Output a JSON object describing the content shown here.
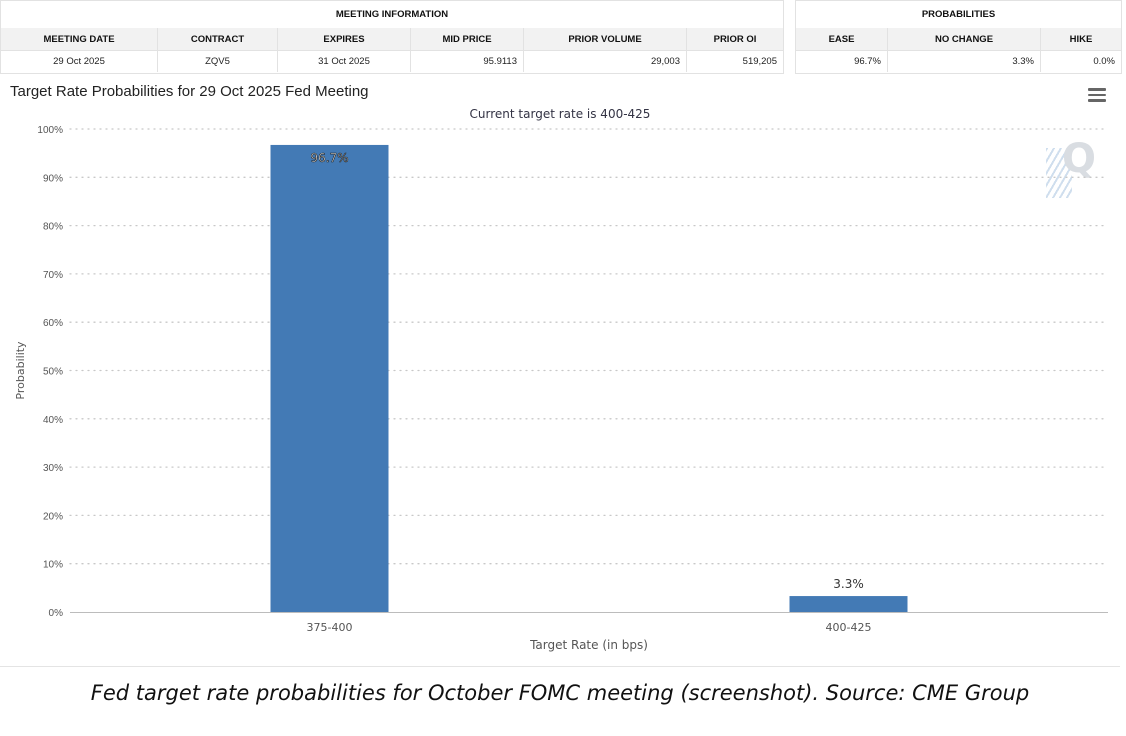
{
  "meeting_info": {
    "title": "MEETING INFORMATION",
    "headers": [
      "MEETING DATE",
      "CONTRACT",
      "EXPIRES",
      "MID PRICE",
      "PRIOR VOLUME",
      "PRIOR OI"
    ],
    "row": [
      "29 Oct 2025",
      "ZQV5",
      "31 Oct 2025",
      "95.9113",
      "29,003",
      "519,205"
    ]
  },
  "probabilities": {
    "title": "PROBABILITIES",
    "headers": [
      "EASE",
      "NO CHANGE",
      "HIKE"
    ],
    "row": [
      "96.7%",
      "3.3%",
      "0.0%"
    ]
  },
  "chart_data": {
    "type": "bar",
    "title": "Target Rate Probabilities for 29 Oct 2025 Fed Meeting",
    "subtitle": "Current target rate is 400-425",
    "xlabel": "Target Rate (in bps)",
    "ylabel": "Probability",
    "categories": [
      "375-400",
      "400-425"
    ],
    "values": [
      96.7,
      3.3
    ],
    "data_labels": [
      "96.7%",
      "3.3%"
    ],
    "ylim": [
      0,
      100
    ],
    "yticks": [
      "0%",
      "10%",
      "20%",
      "30%",
      "40%",
      "50%",
      "60%",
      "70%",
      "80%",
      "90%",
      "100%"
    ],
    "grid": true,
    "color": "#437ab5"
  },
  "watermark": "Q",
  "caption": "Fed target rate probabilities for October FOMC meeting (screenshot). Source: CME Group",
  "icons": {
    "menu": "hamburger-menu-icon"
  }
}
